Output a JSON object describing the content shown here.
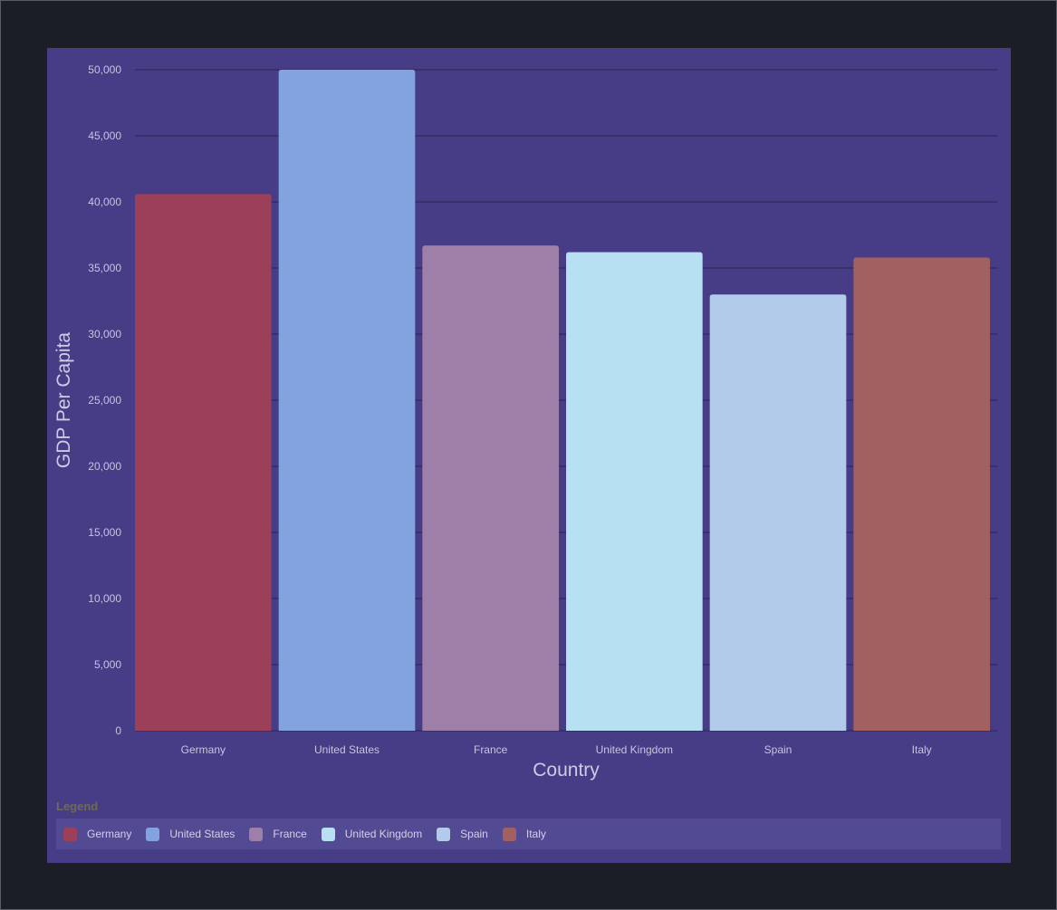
{
  "chart_data": {
    "type": "bar",
    "categories": [
      "Germany",
      "United States",
      "France",
      "United Kingdom",
      "Spain",
      "Italy"
    ],
    "values": [
      40600,
      50000,
      36700,
      36200,
      33000,
      35800
    ],
    "colors": [
      "#9b4058",
      "#82a3e0",
      "#9d7fa8",
      "#b7e0f2",
      "#b3cbeb",
      "#a26060"
    ],
    "xlabel": "Country",
    "ylabel": "GDP Per Capita",
    "ylim": [
      0,
      50000
    ],
    "yticks": [
      0,
      5000,
      10000,
      15000,
      20000,
      25000,
      30000,
      35000,
      40000,
      45000,
      50000
    ],
    "ytick_labels": [
      "0",
      "5,000",
      "10,000",
      "15,000",
      "20,000",
      "25,000",
      "30,000",
      "35,000",
      "40,000",
      "45,000",
      "50,000"
    ],
    "grid": true,
    "legend_position": "bottom"
  },
  "legend": {
    "title": "Legend",
    "items": [
      {
        "label": "Germany",
        "color": "#9b4058"
      },
      {
        "label": "United States",
        "color": "#82a3e0"
      },
      {
        "label": "France",
        "color": "#9d7fa8"
      },
      {
        "label": "United Kingdom",
        "color": "#b7e0f2"
      },
      {
        "label": "Spain",
        "color": "#b3cbeb"
      },
      {
        "label": "Italy",
        "color": "#a26060"
      }
    ]
  }
}
